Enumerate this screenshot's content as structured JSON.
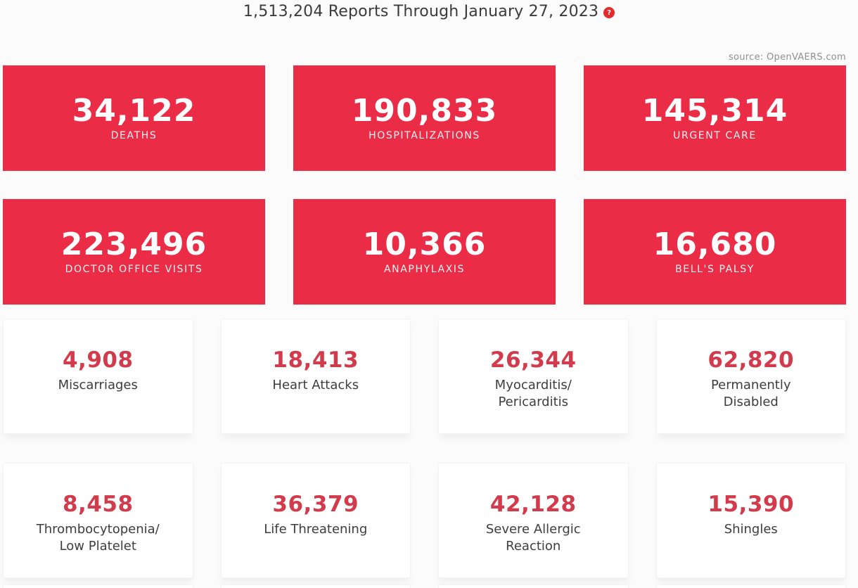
{
  "header": {
    "title": "1,513,204 Reports Through January 27, 2023",
    "help_icon_glyph": "?",
    "source": "source: OpenVAERS.com"
  },
  "colors": {
    "red_card_background": "#ea2c47",
    "white_card_number_red": "#d23b4b",
    "help_badge_red": "#e32b2b",
    "title_text": "#3b3b3b",
    "label_text": "#3d3d3d",
    "page_background": "#fbfbfb"
  },
  "red_cards": [
    {
      "value": "34,122",
      "label": "DEATHS"
    },
    {
      "value": "190,833",
      "label": "HOSPITALIZATIONS"
    },
    {
      "value": "145,314",
      "label": "URGENT CARE"
    },
    {
      "value": "223,496",
      "label": "DOCTOR OFFICE VISITS"
    },
    {
      "value": "10,366",
      "label": "ANAPHYLAXIS"
    },
    {
      "value": "16,680",
      "label": "BELL'S PALSY"
    }
  ],
  "white_cards": [
    {
      "value": "4,908",
      "label": "Miscarriages"
    },
    {
      "value": "18,413",
      "label": "Heart Attacks"
    },
    {
      "value": "26,344",
      "label": "Myocarditis/\nPericarditis"
    },
    {
      "value": "62,820",
      "label": "Permanently\nDisabled"
    },
    {
      "value": "8,458",
      "label": "Thrombocytopenia/\nLow Platelet"
    },
    {
      "value": "36,379",
      "label": "Life Threatening"
    },
    {
      "value": "42,128",
      "label": "Severe Allergic\nReaction"
    },
    {
      "value": "15,390",
      "label": "Shingles"
    }
  ]
}
